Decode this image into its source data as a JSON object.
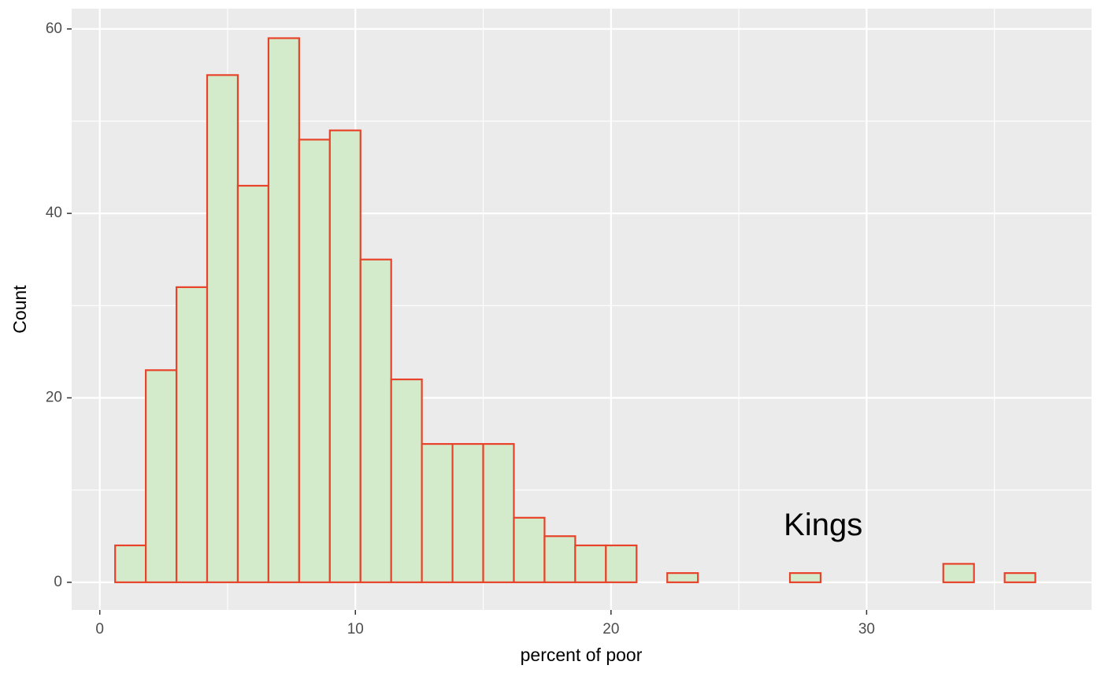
{
  "chart_data": {
    "type": "bar",
    "title": "",
    "xlabel": "percent of poor",
    "ylabel": "Count",
    "xlim": [
      -1.1,
      38.8
    ],
    "ylim": [
      -3,
      62.2
    ],
    "xticks": [
      0,
      10,
      20,
      30
    ],
    "yticks": [
      0,
      20,
      40,
      60
    ],
    "grid": true,
    "bin_width": 1.2,
    "bins": [
      {
        "x0": 0.6,
        "x1": 1.8,
        "count": 4
      },
      {
        "x0": 1.8,
        "x1": 3.0,
        "count": 23
      },
      {
        "x0": 3.0,
        "x1": 4.2,
        "count": 32
      },
      {
        "x0": 4.2,
        "x1": 5.4,
        "count": 55
      },
      {
        "x0": 5.4,
        "x1": 6.6,
        "count": 43
      },
      {
        "x0": 6.6,
        "x1": 7.8,
        "count": 59
      },
      {
        "x0": 7.8,
        "x1": 9.0,
        "count": 48
      },
      {
        "x0": 9.0,
        "x1": 10.2,
        "count": 49
      },
      {
        "x0": 10.2,
        "x1": 11.4,
        "count": 35
      },
      {
        "x0": 11.4,
        "x1": 12.6,
        "count": 22
      },
      {
        "x0": 12.6,
        "x1": 13.8,
        "count": 15
      },
      {
        "x0": 13.8,
        "x1": 15.0,
        "count": 15
      },
      {
        "x0": 15.0,
        "x1": 16.2,
        "count": 15
      },
      {
        "x0": 16.2,
        "x1": 17.4,
        "count": 7
      },
      {
        "x0": 17.4,
        "x1": 18.6,
        "count": 5
      },
      {
        "x0": 18.6,
        "x1": 19.8,
        "count": 4
      },
      {
        "x0": 19.8,
        "x1": 21.0,
        "count": 4
      },
      {
        "x0": 21.0,
        "x1": 22.2,
        "count": 0
      },
      {
        "x0": 22.2,
        "x1": 23.4,
        "count": 1
      },
      {
        "x0": 23.4,
        "x1": 24.6,
        "count": 0
      },
      {
        "x0": 24.6,
        "x1": 25.8,
        "count": 0
      },
      {
        "x0": 25.8,
        "x1": 27.0,
        "count": 0
      },
      {
        "x0": 27.0,
        "x1": 28.2,
        "count": 1
      },
      {
        "x0": 28.2,
        "x1": 29.4,
        "count": 0
      },
      {
        "x0": 29.4,
        "x1": 30.6,
        "count": 0
      },
      {
        "x0": 30.6,
        "x1": 31.8,
        "count": 0
      },
      {
        "x0": 31.8,
        "x1": 33.0,
        "count": 0
      },
      {
        "x0": 33.0,
        "x1": 34.2,
        "count": 2
      },
      {
        "x0": 34.2,
        "x1": 35.4,
        "count": 0
      },
      {
        "x0": 35.4,
        "x1": 36.6,
        "count": 1
      }
    ],
    "annotations": [
      {
        "text": "Kings",
        "x": 28.3,
        "y": 6
      }
    ],
    "colors": {
      "panel": "#ebebeb",
      "grid": "#ffffff",
      "bar_fill": "#d3ebcb",
      "bar_stroke": "#e8432a",
      "tick": "#333333"
    }
  }
}
